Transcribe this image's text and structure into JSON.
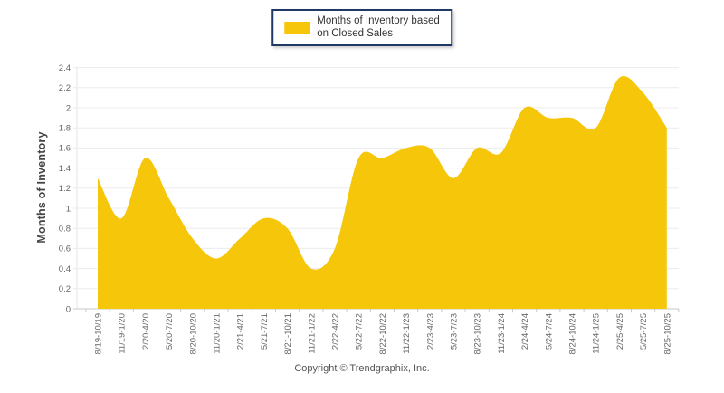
{
  "legend": {
    "line1": "Months of Inventory based",
    "line2": "on Closed Sales",
    "swatch_color": "#F6C60B",
    "border_color": "#1F3864"
  },
  "y_axis": {
    "title": "Months of Inventory",
    "tick_labels": [
      "2.4",
      "2.2",
      "2",
      "1.8",
      "1.6",
      "1.4",
      "1.2",
      "1",
      "0.8",
      "0.6",
      "0.4",
      "0.2",
      "0"
    ]
  },
  "footer": {
    "copyright": "Copyright © Trendgraphix, Inc."
  },
  "colors": {
    "area_fill": "#F6C60B",
    "grid_line": "#ececec",
    "axis_line": "#c9c9c9",
    "left_axis_line": "#e5e5e5",
    "tick_text": "#666666",
    "axis_title_text": "#444444",
    "legend_text": "#333333"
  },
  "chart_data": {
    "type": "area",
    "smooth": true,
    "title": "",
    "xlabel": "",
    "ylabel": "Months of Inventory",
    "ylim": [
      0,
      2.4
    ],
    "ytick_step": 0.2,
    "grid": true,
    "legend_position": "top-center",
    "fill_color": "#F6C60B",
    "categories": [
      "8/19-10/19",
      "11/19-1/20",
      "2/20-4/20",
      "5/20-7/20",
      "8/20-10/20",
      "11/20-1/21",
      "2/21-4/21",
      "5/21-7/21",
      "8/21-10/21",
      "11/21-1/22",
      "2/22-4/22",
      "5/22-7/22",
      "8/22-10/22",
      "11/22-1/23",
      "2/23-4/23",
      "5/23-7/23",
      "8/23-10/23",
      "11/23-1/24",
      "2/24-4/24",
      "5/24-7/24",
      "8/24-10/24",
      "11/24-1/25",
      "2/25-4/25",
      "5/25-7/25",
      "8/25-10/25"
    ],
    "series": [
      {
        "name": "Months of Inventory based on Closed Sales",
        "values": [
          1.3,
          0.9,
          1.5,
          1.1,
          0.7,
          0.5,
          0.7,
          0.9,
          0.8,
          0.4,
          0.6,
          1.5,
          1.5,
          1.6,
          1.6,
          1.3,
          1.6,
          1.55,
          2.0,
          1.9,
          1.9,
          1.8,
          2.3,
          2.15,
          1.8
        ]
      }
    ]
  }
}
